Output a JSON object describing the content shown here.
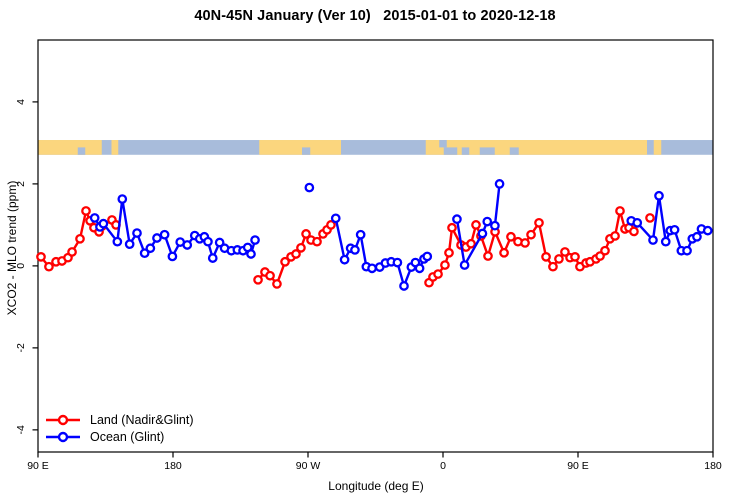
{
  "chart_data": {
    "type": "line",
    "title": "40N-45N January (Ver 10)   2015-01-01 to 2020-12-18",
    "xlabel": "Longitude (deg E)",
    "ylabel": "XCO2 - MLO trend (ppm)",
    "grid": false,
    "legend_position": "bottom-left",
    "x_range_deg": [
      90,
      540
    ],
    "y_range": [
      -4.54,
      5.51
    ],
    "x_ticks": [
      {
        "label": "90 E",
        "deg": 90
      },
      {
        "label": "180",
        "deg": 180
      },
      {
        "label": "90 W",
        "deg": 270
      },
      {
        "label": "0",
        "deg": 360
      },
      {
        "label": "90 E",
        "deg": 450
      },
      {
        "label": "180",
        "deg": 540
      }
    ],
    "y_ticks": [
      {
        "label": "-4",
        "value": -4
      },
      {
        "label": "-2",
        "value": -2
      },
      {
        "label": "0",
        "value": 0
      },
      {
        "label": "2",
        "value": 2
      },
      {
        "label": "4",
        "value": 4
      }
    ],
    "map_band": {
      "description": "40N-45N latitude strip: land/ocean along longitude",
      "y_top_value": 3.07,
      "y_bottom_value": 2.71,
      "land_color": "#fbd67e",
      "ocean_color": "#a8bcdb",
      "land_segments_deg": [
        [
          90,
          132.5
        ],
        [
          139,
          143.5
        ],
        [
          237.5,
          292
        ],
        [
          348.5,
          496
        ],
        [
          500.5,
          505.5
        ]
      ],
      "inland_water_bottom_deg": [
        [
          116.5,
          121.5
        ],
        [
          266,
          271.5
        ],
        [
          360.5,
          369.5
        ],
        [
          372.5,
          377.5
        ],
        [
          384.5,
          394.5
        ],
        [
          404.5,
          410.5
        ]
      ],
      "coastal_water_top_deg": [
        [
          357.5,
          362.5
        ]
      ]
    },
    "series": [
      {
        "name": "Land (Nadir&Glint)",
        "color": "#ff0000",
        "marker": "open-circle",
        "segments": [
          [
            [
              92,
              0.22
            ],
            [
              97.3,
              -0.02
            ],
            [
              102,
              0.1
            ],
            [
              106,
              0.12
            ],
            [
              110,
              0.2
            ],
            [
              112.7,
              0.34
            ],
            [
              118,
              0.66
            ],
            [
              122,
              1.34
            ],
            [
              124.7,
              1.1
            ],
            [
              127.3,
              0.93
            ],
            [
              130.7,
              0.83
            ],
            [
              132.7,
              0.97
            ],
            [
              139.3,
              1.12
            ],
            [
              142,
              1.0
            ]
          ],
          [
            [
              236.7,
              -0.34
            ],
            [
              241.3,
              -0.15
            ],
            [
              244.7,
              -0.24
            ],
            [
              249.3,
              -0.44
            ],
            [
              254.7,
              0.1
            ],
            [
              258.7,
              0.22
            ],
            [
              262,
              0.29
            ],
            [
              265.3,
              0.44
            ],
            [
              268.7,
              0.78
            ],
            [
              272,
              0.63
            ],
            [
              276,
              0.59
            ],
            [
              280,
              0.78
            ],
            [
              282.7,
              0.88
            ],
            [
              285.3,
              1.0
            ]
          ],
          [
            [
              350.7,
              -0.41
            ],
            [
              353.3,
              -0.27
            ],
            [
              356.7,
              -0.2
            ],
            [
              361.3,
              0.02
            ],
            [
              364,
              0.32
            ],
            [
              366,
              0.93
            ],
            [
              372,
              0.51
            ],
            [
              375.3,
              0.46
            ],
            [
              378.7,
              0.54
            ],
            [
              382,
              1.0
            ],
            [
              385.3,
              0.73
            ],
            [
              390,
              0.24
            ],
            [
              394.7,
              0.83
            ],
            [
              400.7,
              0.32
            ],
            [
              405.3,
              0.71
            ],
            [
              410,
              0.59
            ],
            [
              414.7,
              0.56
            ],
            [
              418.7,
              0.76
            ],
            [
              424,
              1.05
            ],
            [
              428.7,
              0.22
            ],
            [
              433.3,
              -0.02
            ],
            [
              437.3,
              0.17
            ],
            [
              441.3,
              0.34
            ],
            [
              444.7,
              0.2
            ],
            [
              448,
              0.22
            ],
            [
              451.3,
              -0.02
            ],
            [
              455.3,
              0.07
            ],
            [
              458,
              0.1
            ],
            [
              462,
              0.17
            ],
            [
              464.7,
              0.24
            ],
            [
              468,
              0.37
            ],
            [
              471.3,
              0.66
            ],
            [
              474.7,
              0.73
            ],
            [
              478,
              1.34
            ],
            [
              481.3,
              0.9
            ],
            [
              484,
              0.93
            ],
            [
              487.3,
              0.84
            ]
          ]
        ],
        "isolated_points": [
          [
            498,
            1.17
          ]
        ]
      },
      {
        "name": "Ocean (Glint)",
        "color": "#0000ff",
        "marker": "open-circle",
        "segments": [
          [
            [
              127.8,
              1.17
            ],
            [
              131.3,
              0.95
            ],
            [
              133.6,
              1.03
            ],
            [
              142.9,
              0.59
            ],
            [
              146.2,
              1.63
            ],
            [
              151.1,
              0.53
            ],
            [
              156,
              0.8
            ],
            [
              161.1,
              0.31
            ],
            [
              164.9,
              0.43
            ],
            [
              169.3,
              0.68
            ],
            [
              174.4,
              0.76
            ],
            [
              179.6,
              0.23
            ],
            [
              184.8,
              0.58
            ],
            [
              189.5,
              0.51
            ],
            [
              194.5,
              0.74
            ],
            [
              197.8,
              0.66
            ],
            [
              200.9,
              0.71
            ],
            [
              203.3,
              0.59
            ],
            [
              206.5,
              0.19
            ],
            [
              211.1,
              0.57
            ],
            [
              214.4,
              0.43
            ],
            [
              218.9,
              0.37
            ],
            [
              222.9,
              0.39
            ],
            [
              226.7,
              0.37
            ],
            [
              229.8,
              0.45
            ],
            [
              232,
              0.29
            ],
            [
              234.7,
              0.63
            ]
          ],
          [
            [
              288.5,
              1.16
            ],
            [
              294.4,
              0.15
            ],
            [
              298.4,
              0.43
            ],
            [
              301.3,
              0.39
            ],
            [
              305.1,
              0.76
            ],
            [
              308.9,
              -0.02
            ],
            [
              312.7,
              -0.06
            ],
            [
              317.8,
              -0.03
            ],
            [
              321.6,
              0.07
            ],
            [
              325.5,
              0.1
            ],
            [
              329.6,
              0.08
            ],
            [
              334,
              -0.49
            ],
            [
              338.9,
              -0.03
            ],
            [
              341.6,
              0.08
            ],
            [
              344.4,
              -0.06
            ],
            [
              347.3,
              0.17
            ],
            [
              349.5,
              0.23
            ]
          ],
          [
            [
              369.3,
              1.14
            ],
            [
              374.4,
              0.02
            ],
            [
              386.3,
              0.79
            ],
            [
              389.5,
              1.08
            ],
            [
              394.6,
              0.98
            ],
            [
              397.7,
              2.0
            ]
          ],
          [
            [
              485.5,
              1.1
            ],
            [
              489.5,
              1.05
            ],
            [
              500,
              0.63
            ],
            [
              504,
              1.71
            ],
            [
              508.5,
              0.59
            ],
            [
              511.5,
              0.86
            ],
            [
              514.4,
              0.88
            ],
            [
              518.9,
              0.37
            ],
            [
              522.7,
              0.37
            ],
            [
              526.2,
              0.66
            ],
            [
              529.3,
              0.71
            ],
            [
              532.3,
              0.9
            ],
            [
              536.5,
              0.86
            ]
          ]
        ],
        "isolated_points": [
          [
            270.9,
            1.91
          ]
        ]
      }
    ]
  }
}
